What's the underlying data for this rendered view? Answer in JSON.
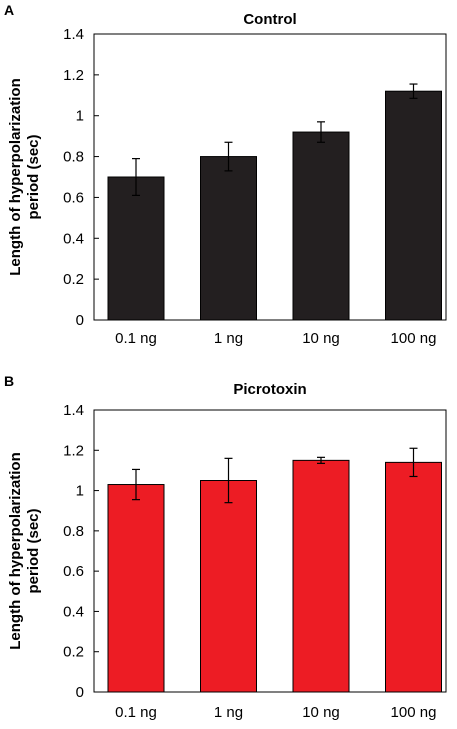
{
  "chart_data": [
    {
      "panel": "A",
      "type": "bar",
      "title": "Control",
      "ylabel_lines": [
        "Length of hyperpolarization",
        "period (sec)"
      ],
      "xlabel": "",
      "categories": [
        "0.1 ng",
        "1 ng",
        "10 ng",
        "100 ng"
      ],
      "values": [
        0.7,
        0.8,
        0.92,
        1.12
      ],
      "errors": [
        0.09,
        0.07,
        0.05,
        0.035
      ],
      "ylim": [
        0,
        1.4
      ],
      "yticks": [
        "0",
        "0.2",
        "0.4",
        "0.6",
        "0.8",
        "1",
        "1.2",
        "1.4"
      ],
      "bar_color": "#231f20",
      "grid": false,
      "legend": "none"
    },
    {
      "panel": "B",
      "type": "bar",
      "title": "Picrotoxin",
      "ylabel_lines": [
        "Length of hyperpolarization",
        "period (sec)"
      ],
      "xlabel": "",
      "categories": [
        "0.1 ng",
        "1 ng",
        "10 ng",
        "100 ng"
      ],
      "values": [
        1.03,
        1.05,
        1.15,
        1.14
      ],
      "errors": [
        0.075,
        0.11,
        0.015,
        0.07
      ],
      "ylim": [
        0,
        1.4
      ],
      "yticks": [
        "0",
        "0.2",
        "0.4",
        "0.6",
        "0.8",
        "1",
        "1.2",
        "1.4"
      ],
      "bar_color": "#ed1c24",
      "grid": false,
      "legend": "none"
    }
  ]
}
